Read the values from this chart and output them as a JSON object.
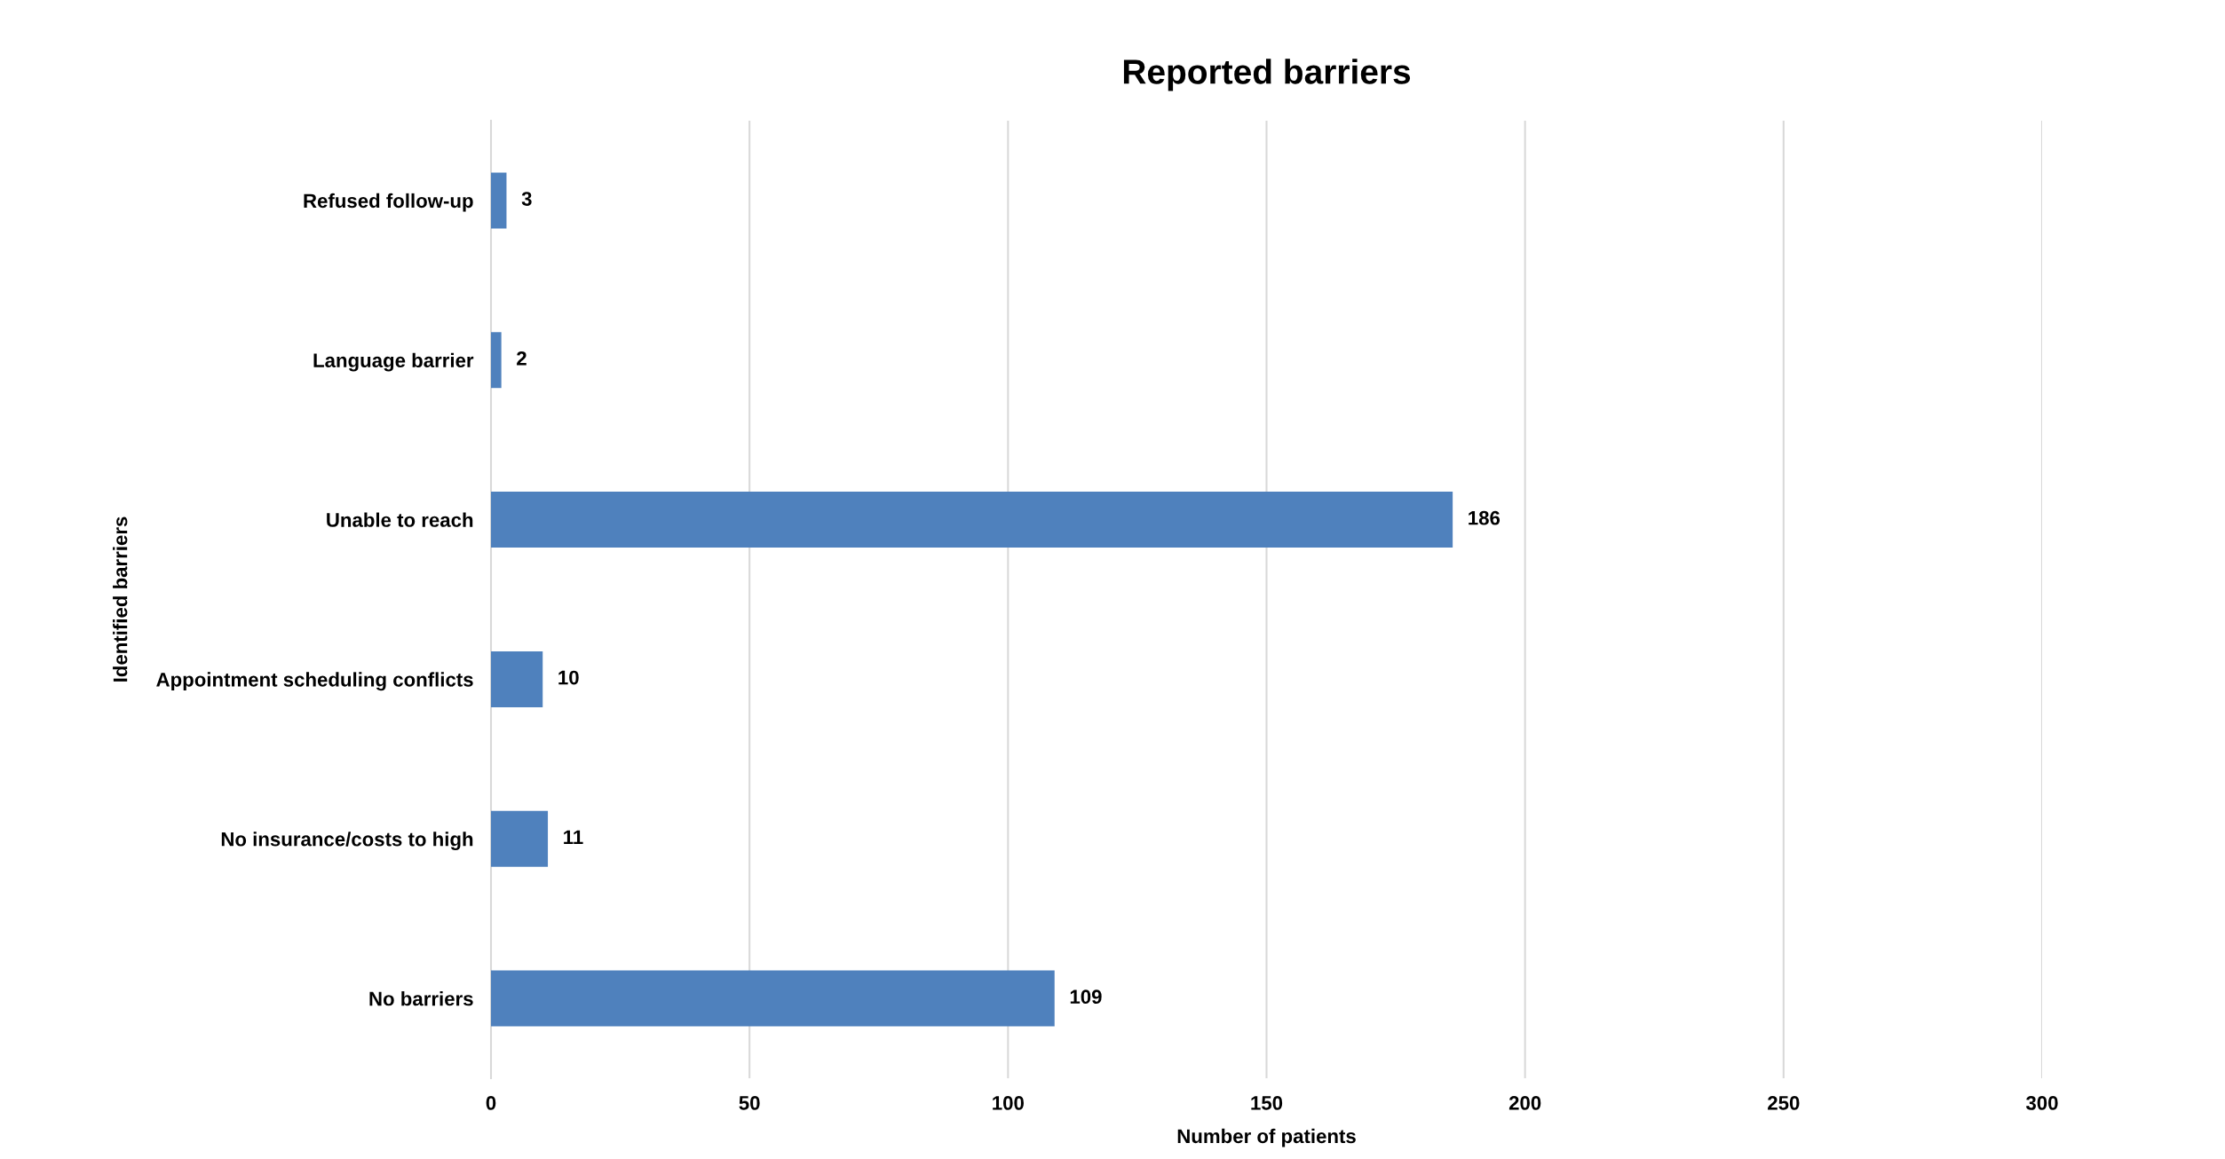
{
  "chart_data": {
    "type": "bar",
    "orientation": "horizontal",
    "title": "Reported barriers",
    "xlabel": "Number of patients",
    "ylabel": "Identified barriers",
    "categories": [
      "Refused follow-up",
      "Language barrier",
      "Unable to reach",
      "Appointment scheduling conflicts",
      "No insurance/costs to high",
      "No barriers"
    ],
    "values": [
      3,
      2,
      186,
      10,
      11,
      109
    ],
    "color": "#4f81bd",
    "xlim": [
      0,
      300
    ],
    "xticks": [
      0,
      50,
      100,
      150,
      200,
      250,
      300
    ],
    "grid": "x",
    "data_labels": true
  }
}
